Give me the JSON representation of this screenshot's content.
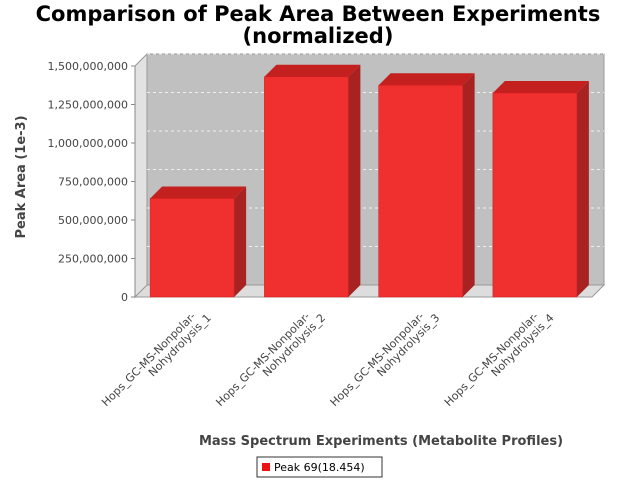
{
  "chart_data": {
    "type": "bar",
    "title": "Comparison of Peak Area Between Experiments",
    "title_line2": "(normalized)",
    "xlabel": "Mass Spectrum Experiments (Metabolite Profiles)",
    "ylabel": "Peak Area (1e-3)",
    "categories": [
      [
        "Hops_GC-MS-Nonpolar-",
        "Nohydrolysis_1"
      ],
      [
        "Hops_GC-MS-Nonpolar-",
        "Nohydrolysis_2"
      ],
      [
        "Hops_GC-MS-Nonpolar-",
        "Nohydrolysis_3"
      ],
      [
        "Hops_GC-MS-Nonpolar-",
        "Nohydrolysis_4"
      ]
    ],
    "series": [
      {
        "name": "Peak 69(18.454)",
        "color": "#ee1111",
        "values": [
          640000000,
          1430000000,
          1375000000,
          1325000000
        ]
      }
    ],
    "ylim": [
      0,
      1500000000
    ],
    "yticks": [
      0,
      250000000,
      500000000,
      750000000,
      1000000000,
      1250000000,
      1500000000
    ],
    "ytick_labels": [
      "0",
      "250,000,000",
      "500,000,000",
      "750,000,000",
      "1,000,000,000",
      "1,250,000,000",
      "1,500,000,000"
    ],
    "grid": true,
    "legend_position": "bottom-center",
    "plot_background": "#c0c0c0",
    "three_d": true
  }
}
